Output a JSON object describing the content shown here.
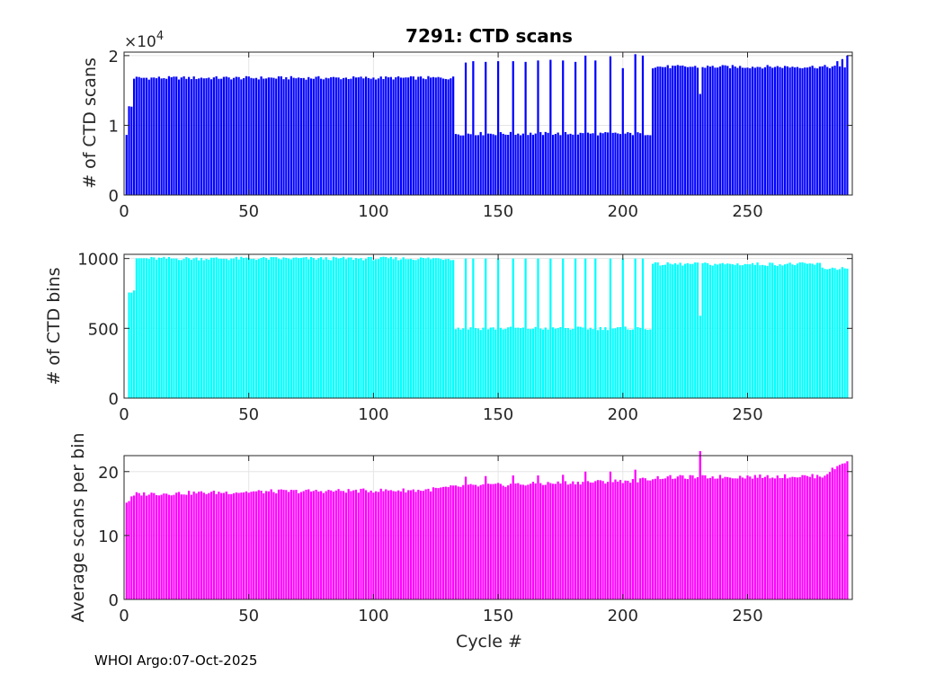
{
  "figure_footer": "WHOI Argo:07-Oct-2025",
  "chart_data": [
    {
      "type": "bar",
      "title": "7291: CTD scans",
      "xlabel": "",
      "ylabel": "# of CTD scans",
      "exponent_label": "×10",
      "exponent_power": "4",
      "color": "#0000ff",
      "xlim": [
        0,
        292
      ],
      "ylim": [
        0,
        2.05
      ],
      "xticks": [
        0,
        50,
        100,
        150,
        200,
        250
      ],
      "yticks": [
        0,
        1,
        2
      ],
      "grid": true,
      "segments": [
        {
          "from": 1,
          "to": 1,
          "value": 0.85
        },
        {
          "from": 2,
          "to": 3,
          "value": 1.27
        },
        {
          "from": 4,
          "to": 132,
          "value": 1.68
        },
        {
          "from": 133,
          "to": 211,
          "value": 0.88
        },
        {
          "from": 212,
          "to": 290,
          "value": 1.84
        }
      ],
      "spikes": [
        {
          "x": 137,
          "value": 1.9
        },
        {
          "x": 140,
          "value": 1.92
        },
        {
          "x": 145,
          "value": 1.91
        },
        {
          "x": 150,
          "value": 1.92
        },
        {
          "x": 156,
          "value": 1.92
        },
        {
          "x": 161,
          "value": 1.91
        },
        {
          "x": 166,
          "value": 1.93
        },
        {
          "x": 171,
          "value": 1.94
        },
        {
          "x": 176,
          "value": 1.93
        },
        {
          "x": 181,
          "value": 1.91
        },
        {
          "x": 185,
          "value": 2.0
        },
        {
          "x": 189,
          "value": 1.93
        },
        {
          "x": 195,
          "value": 1.99
        },
        {
          "x": 200,
          "value": 1.82
        },
        {
          "x": 205,
          "value": 2.02
        },
        {
          "x": 208,
          "value": 2.0
        },
        {
          "x": 231,
          "value": 1.45
        },
        {
          "x": 286,
          "value": 1.92
        },
        {
          "x": 288,
          "value": 1.95
        },
        {
          "x": 290,
          "value": 2.0
        }
      ]
    },
    {
      "type": "bar",
      "title": "",
      "xlabel": "",
      "ylabel": "# of CTD bins",
      "color": "#00ffff",
      "xlim": [
        0,
        292
      ],
      "ylim": [
        0,
        1030
      ],
      "xticks": [
        0,
        50,
        100,
        150,
        200,
        250
      ],
      "yticks": [
        0,
        500,
        1000
      ],
      "grid": true,
      "segments": [
        {
          "from": 1,
          "to": 1,
          "value": 10
        },
        {
          "from": 2,
          "to": 4,
          "value": 760
        },
        {
          "from": 5,
          "to": 132,
          "value": 1000
        },
        {
          "from": 133,
          "to": 211,
          "value": 500
        },
        {
          "from": 212,
          "to": 279,
          "value": 960
        },
        {
          "from": 280,
          "to": 290,
          "value": 930
        }
      ],
      "spikes": [
        {
          "x": 137,
          "value": 1000
        },
        {
          "x": 140,
          "value": 1000
        },
        {
          "x": 145,
          "value": 1000
        },
        {
          "x": 150,
          "value": 1000
        },
        {
          "x": 156,
          "value": 1000
        },
        {
          "x": 161,
          "value": 1000
        },
        {
          "x": 166,
          "value": 1000
        },
        {
          "x": 171,
          "value": 1000
        },
        {
          "x": 176,
          "value": 1000
        },
        {
          "x": 181,
          "value": 1000
        },
        {
          "x": 185,
          "value": 1000
        },
        {
          "x": 189,
          "value": 1000
        },
        {
          "x": 195,
          "value": 1000
        },
        {
          "x": 200,
          "value": 1000
        },
        {
          "x": 205,
          "value": 1000
        },
        {
          "x": 208,
          "value": 1000
        },
        {
          "x": 231,
          "value": 590
        }
      ]
    },
    {
      "type": "bar",
      "title": "",
      "xlabel": "Cycle #",
      "ylabel": "Average scans per bin",
      "color": "#ff00ff",
      "xlim": [
        0,
        292
      ],
      "ylim": [
        0,
        22.5
      ],
      "xticks": [
        0,
        50,
        100,
        150,
        200,
        250
      ],
      "yticks": [
        0,
        10,
        20
      ],
      "grid": true,
      "trend": [
        {
          "x": 1,
          "value": 15.2
        },
        {
          "x": 5,
          "value": 16.5
        },
        {
          "x": 60,
          "value": 16.9
        },
        {
          "x": 120,
          "value": 17.1
        },
        {
          "x": 135,
          "value": 17.7
        },
        {
          "x": 205,
          "value": 18.6
        },
        {
          "x": 215,
          "value": 19.1
        },
        {
          "x": 280,
          "value": 19.3
        },
        {
          "x": 290,
          "value": 21.8
        }
      ],
      "spikes": [
        {
          "x": 137,
          "value": 19.2
        },
        {
          "x": 145,
          "value": 19.3
        },
        {
          "x": 156,
          "value": 19.4
        },
        {
          "x": 166,
          "value": 19.4
        },
        {
          "x": 176,
          "value": 19.5
        },
        {
          "x": 185,
          "value": 20.0
        },
        {
          "x": 195,
          "value": 20.0
        },
        {
          "x": 205,
          "value": 20.3
        },
        {
          "x": 231,
          "value": 22.7
        }
      ]
    }
  ]
}
